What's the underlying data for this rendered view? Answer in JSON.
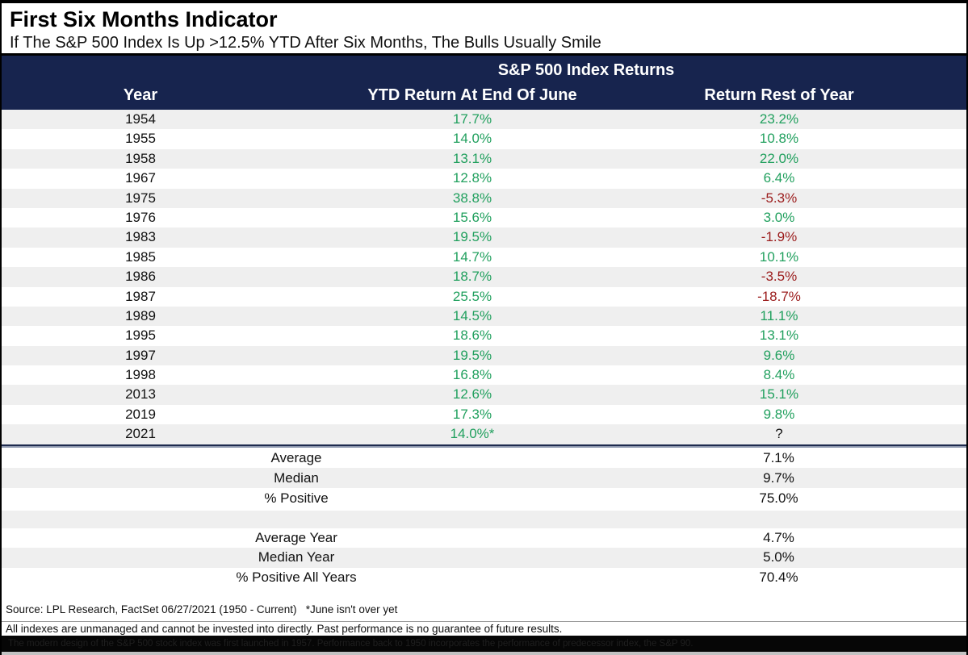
{
  "title": "First Six Months Indicator",
  "subtitle": "If The S&P 500 Index Is Up >12.5% YTD After Six Months, The Bulls Usually Smile",
  "chart_data": {
    "type": "table",
    "title": "First Six Months Indicator",
    "subtitle": "If The S&P 500 Index Is Up >12.5% YTD After Six Months, The Bulls Usually Smile",
    "group_header": "S&P 500 Index Returns",
    "columns": [
      "Year",
      "YTD Return At End Of June",
      "Return Rest of Year"
    ],
    "rows": [
      {
        "year": "1954",
        "ytd": "17.7%",
        "rest": "23.2%"
      },
      {
        "year": "1955",
        "ytd": "14.0%",
        "rest": "10.8%"
      },
      {
        "year": "1958",
        "ytd": "13.1%",
        "rest": "22.0%"
      },
      {
        "year": "1967",
        "ytd": "12.8%",
        "rest": "6.4%"
      },
      {
        "year": "1975",
        "ytd": "38.8%",
        "rest": "-5.3%"
      },
      {
        "year": "1976",
        "ytd": "15.6%",
        "rest": "3.0%"
      },
      {
        "year": "1983",
        "ytd": "19.5%",
        "rest": "-1.9%"
      },
      {
        "year": "1985",
        "ytd": "14.7%",
        "rest": "10.1%"
      },
      {
        "year": "1986",
        "ytd": "18.7%",
        "rest": "-3.5%"
      },
      {
        "year": "1987",
        "ytd": "25.5%",
        "rest": "-18.7%"
      },
      {
        "year": "1989",
        "ytd": "14.5%",
        "rest": "11.1%"
      },
      {
        "year": "1995",
        "ytd": "18.6%",
        "rest": "13.1%"
      },
      {
        "year": "1997",
        "ytd": "19.5%",
        "rest": "9.6%"
      },
      {
        "year": "1998",
        "ytd": "16.8%",
        "rest": "8.4%"
      },
      {
        "year": "2013",
        "ytd": "12.6%",
        "rest": "15.1%"
      },
      {
        "year": "2019",
        "ytd": "17.3%",
        "rest": "9.8%"
      },
      {
        "year": "2021",
        "ytd": "14.0%*",
        "rest": "?"
      }
    ],
    "summary_signal_years": [
      {
        "label": "Average",
        "value": "7.1%"
      },
      {
        "label": "Median",
        "value": "9.7%"
      },
      {
        "label": "% Positive",
        "value": "75.0%"
      }
    ],
    "summary_all_years": [
      {
        "label": "Average Year",
        "value": "4.7%"
      },
      {
        "label": "Median Year",
        "value": "5.0%"
      },
      {
        "label": "% Positive All Years",
        "value": "70.4%"
      }
    ]
  },
  "footnotes": {
    "source": "Source: LPL Research, FactSet 06/27/2021 (1950 - Current)   *June isn't over yet",
    "disclaimer": "All indexes are unmanaged and cannot be invested into directly. Past performance is no guarantee of future results.",
    "footer_bar": "The modern design of the S&P 500 stock index was first launched in 1957. Performance back to 1950 incorporates the performance of predecessor index, the S&P 90."
  },
  "colors": {
    "navy": "#17244E",
    "green": "#21A05E",
    "red": "#9B1C1C",
    "row_alt": "#EFEFEF",
    "positive_text": "green",
    "negative_text": "dark-red"
  }
}
